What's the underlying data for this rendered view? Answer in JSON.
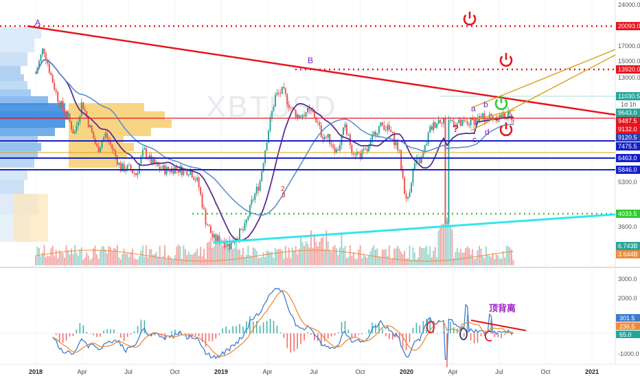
{
  "watermark": "XBTUSD",
  "interval": "1d 1h",
  "annotations": {
    "A": "A",
    "B": "B",
    "a": "a",
    "b": "b",
    "c": "c",
    "d": "d",
    "q_mark": "?",
    "num2": "2",
    "num3": "3",
    "divergence": "顶背离"
  },
  "colors": {
    "resistance": "#e6141e",
    "dotted_red": "#e6141e",
    "support_cyan": "#33e5ee",
    "level_blue": "#1520c8",
    "dotted_green": "#2ecc2e",
    "gold": "#d4a015",
    "ma_purple": "#5a2d91",
    "ma_blue": "#5b8fd0",
    "up": "#26a69a",
    "down": "#ef5350"
  },
  "chart_data": {
    "type": "candlestick",
    "x_tick_labels": [
      "2018",
      "Apr",
      "Jul",
      "Oct",
      "2019",
      "Apr",
      "Jul",
      "Oct",
      "2020",
      "Apr",
      "Jul",
      "Oct",
      "2021"
    ],
    "price_axis": {
      "scale": "log",
      "ticks": [
        "24000.0",
        "17000.0",
        "15000.0",
        "13000.0",
        "5300.0",
        "4033.5",
        "3600.0"
      ],
      "badges": [
        {
          "label": "20093.0",
          "color": "#e6141e"
        },
        {
          "label": "13920.0",
          "color": "#e6141e"
        },
        {
          "label": "11030.5",
          "color": "#26a69a"
        },
        {
          "label": "9643.0",
          "color": "#26a69a"
        },
        {
          "label": "9487.5",
          "color": "#e6141e"
        },
        {
          "label": "9132.0",
          "color": "#e6141e"
        },
        {
          "label": "9120.5",
          "color": "#2a3fb5"
        },
        {
          "label": "7475.5",
          "color": "#1520c8"
        },
        {
          "label": "6463.0",
          "color": "#1520c8"
        },
        {
          "label": "5846.0",
          "color": "#1520c8"
        },
        {
          "label": "4033.5",
          "color": "#2ecc2e"
        },
        {
          "label": "6.743B",
          "color": "#26a69a"
        },
        {
          "label": "3.644B",
          "color": "#f08a3a"
        }
      ]
    },
    "horizontal_levels": [
      20093.0,
      13920.0,
      9487.5,
      7475.5,
      6463.0,
      5846.0,
      4033.5
    ],
    "price_series": {
      "months": [
        0,
        0.5,
        1,
        1.5,
        2,
        2.5,
        3,
        3.5,
        4,
        4.5,
        5,
        5.5,
        6,
        6.5,
        7,
        7.5,
        8,
        8.5,
        9,
        9.5,
        10,
        10.5,
        11,
        11.5,
        12,
        12.5,
        13,
        13.5,
        14,
        14.5,
        15,
        15.5,
        16,
        16.5,
        17,
        17.5,
        18,
        18.5,
        19,
        19.5,
        20,
        20.5,
        21,
        21.5,
        22,
        22.5,
        23,
        23.5,
        24,
        24.5,
        25,
        25.5,
        26,
        26.5,
        27,
        27.5,
        28,
        28.5,
        29,
        29.5,
        30,
        30.5,
        31
      ],
      "close": [
        13800,
        17000,
        13500,
        11000,
        10000,
        8500,
        11000,
        9000,
        7500,
        8500,
        7500,
        6500,
        6500,
        6200,
        7500,
        6800,
        6500,
        6400,
        6500,
        6400,
        6400,
        5800,
        4300,
        3700,
        3700,
        3500,
        3800,
        4000,
        5000,
        5800,
        8500,
        11500,
        12000,
        10500,
        9800,
        10200,
        10000,
        8500,
        8200,
        7400,
        9000,
        7500,
        7200,
        7500,
        8800,
        9200,
        8600,
        7500,
        4900,
        6700,
        7000,
        8800,
        9500,
        9700,
        9400,
        9200,
        9300,
        9600,
        9700,
        9800,
        9800,
        9900,
        9700
      ]
    },
    "volume_label": "6.743B"
  }
}
